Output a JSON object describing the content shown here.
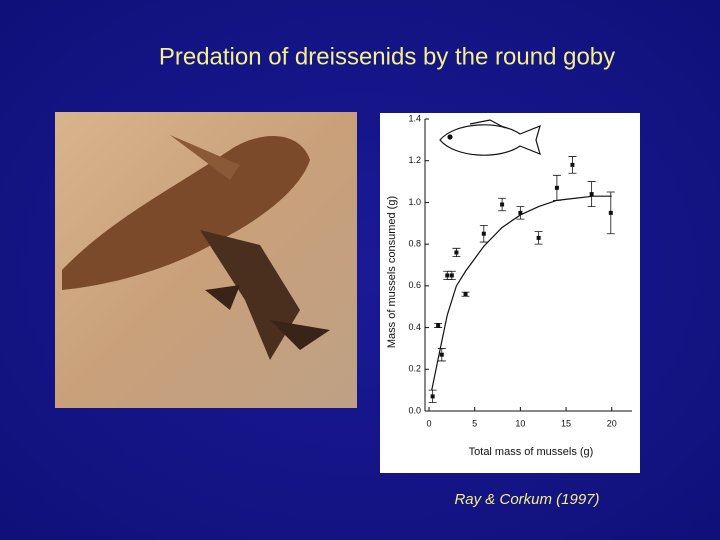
{
  "title": "Predation of dreissenids by the round goby",
  "citation": "Ray & Corkum (1997)",
  "chart_data": {
    "type": "scatter",
    "x_label": "Total mass of mussels (g)",
    "y_label": "Mass of mussels consumed (g)",
    "xlim": [
      0,
      22
    ],
    "ylim": [
      0,
      1.4
    ],
    "xticks": [
      0,
      5,
      10,
      15,
      20
    ],
    "yticks": [
      {
        "value": 0,
        "label": "0.0"
      },
      0.2,
      0.4,
      0.6,
      0.8,
      {
        "value": 1,
        "label": "1.0"
      },
      1.2,
      1.4
    ],
    "series": [
      {
        "color": "#111111",
        "x": [
          0.4,
          1,
          1.4,
          2,
          2.5,
          3,
          4,
          6,
          8,
          10,
          12,
          14,
          15.7,
          17.8,
          19.9
        ],
        "values": [
          0.07,
          0.41,
          0.27,
          0.65,
          0.65,
          0.76,
          0.56,
          0.85,
          0.99,
          0.95,
          0.83,
          1.07,
          1.18,
          1.04,
          0.95
        ],
        "errors": [
          0.03,
          0.01,
          0.03,
          0.02,
          0.02,
          0.02,
          0.01,
          0.04,
          0.03,
          0.03,
          0.03,
          0.06,
          0.04,
          0.06,
          0.1
        ]
      }
    ],
    "fit": {
      "color": "#111111",
      "x": [
        0.3,
        1,
        2,
        3,
        4,
        5,
        6,
        8,
        10,
        12,
        14,
        16,
        18,
        20
      ],
      "values": [
        0.1,
        0.25,
        0.46,
        0.6,
        0.67,
        0.73,
        0.79,
        0.88,
        0.94,
        0.98,
        1.01,
        1.02,
        1.03,
        1.03
      ]
    }
  }
}
